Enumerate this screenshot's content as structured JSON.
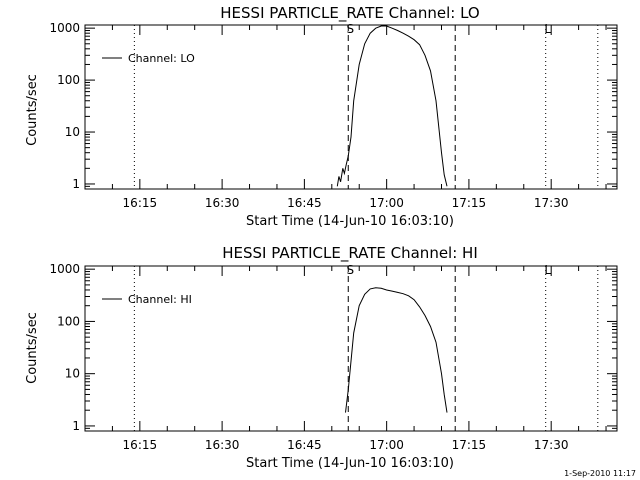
{
  "footer": {
    "timestamp": "1-Sep-2010 11:17"
  },
  "chart_data": [
    {
      "type": "line",
      "title": "HESSI PARTICLE_RATE Channel: LO",
      "xlabel": "Start Time (14-Jun-10 16:03:10)",
      "ylabel": "Counts/sec",
      "xlim": [
        "16:05",
        "17:42"
      ],
      "ylim": [
        0.8,
        1150
      ],
      "yscale": "log",
      "xticks": [
        "16:15",
        "16:30",
        "16:45",
        "17:00",
        "17:15",
        "17:30"
      ],
      "yticks": [
        "1",
        "10",
        "100",
        "1000"
      ],
      "legend": {
        "position": "top-left",
        "entries": [
          "Channel: LO"
        ]
      },
      "markers": [
        {
          "time": "16:14",
          "style": "dotted",
          "label": ""
        },
        {
          "time": "16:53",
          "style": "dashed",
          "label": "S"
        },
        {
          "time": "17:12.5",
          "style": "dashed",
          "label": ""
        },
        {
          "time": "17:29",
          "style": "dotted",
          "label": "L"
        },
        {
          "time": "17:38.5",
          "style": "dotted",
          "label": ""
        }
      ],
      "series": [
        {
          "name": "Channel: LO",
          "x": [
            "16:51.0",
            "16:51.3",
            "16:51.6",
            "16:52.0",
            "16:52.3",
            "16:52.6",
            "16:53.0",
            "16:53.5",
            "16:54.0",
            "16:55.0",
            "16:56.0",
            "16:57.0",
            "16:58.0",
            "16:59.0",
            "17:00.0",
            "17:01.0",
            "17:02.0",
            "17:03.0",
            "17:04.0",
            "17:05.0",
            "17:06.0",
            "17:07.0",
            "17:08.0",
            "17:09.0",
            "17:10.0",
            "17:10.5",
            "17:11.0"
          ],
          "values": [
            0.9,
            1.4,
            1.1,
            2.0,
            1.6,
            2.3,
            3.5,
            8,
            40,
            200,
            500,
            800,
            1000,
            1100,
            1100,
            1000,
            900,
            800,
            700,
            600,
            480,
            300,
            150,
            40,
            4,
            1.5,
            0.9
          ]
        }
      ]
    },
    {
      "type": "line",
      "title": "HESSI PARTICLE_RATE Channel: HI",
      "xlabel": "Start Time (14-Jun-10 16:03:10)",
      "ylabel": "Counts/sec",
      "xlim": [
        "16:05",
        "17:42"
      ],
      "ylim": [
        0.8,
        1150
      ],
      "yscale": "log",
      "xticks": [
        "16:15",
        "16:30",
        "16:45",
        "17:00",
        "17:15",
        "17:30"
      ],
      "yticks": [
        "1",
        "10",
        "100",
        "1000"
      ],
      "legend": {
        "position": "top-left",
        "entries": [
          "Channel: HI"
        ]
      },
      "markers": [
        {
          "time": "16:14",
          "style": "dotted",
          "label": ""
        },
        {
          "time": "16:53",
          "style": "dashed",
          "label": "S"
        },
        {
          "time": "17:12.5",
          "style": "dashed",
          "label": ""
        },
        {
          "time": "17:29",
          "style": "dotted",
          "label": "L"
        },
        {
          "time": "17:38.5",
          "style": "dotted",
          "label": ""
        }
      ],
      "series": [
        {
          "name": "Channel: HI",
          "x": [
            "16:52.5",
            "16:53.0",
            "16:54.0",
            "16:55.0",
            "16:56.0",
            "16:57.0",
            "16:58.0",
            "16:59.0",
            "17:00.0",
            "17:01.0",
            "17:02.0",
            "17:03.0",
            "17:04.0",
            "17:05.0",
            "17:06.0",
            "17:07.0",
            "17:08.0",
            "17:09.0",
            "17:10.0",
            "17:10.5",
            "17:11.0"
          ],
          "values": [
            1.8,
            5,
            60,
            200,
            330,
            420,
            440,
            430,
            400,
            380,
            360,
            340,
            310,
            260,
            190,
            130,
            80,
            40,
            10,
            4,
            1.8
          ]
        }
      ]
    }
  ]
}
